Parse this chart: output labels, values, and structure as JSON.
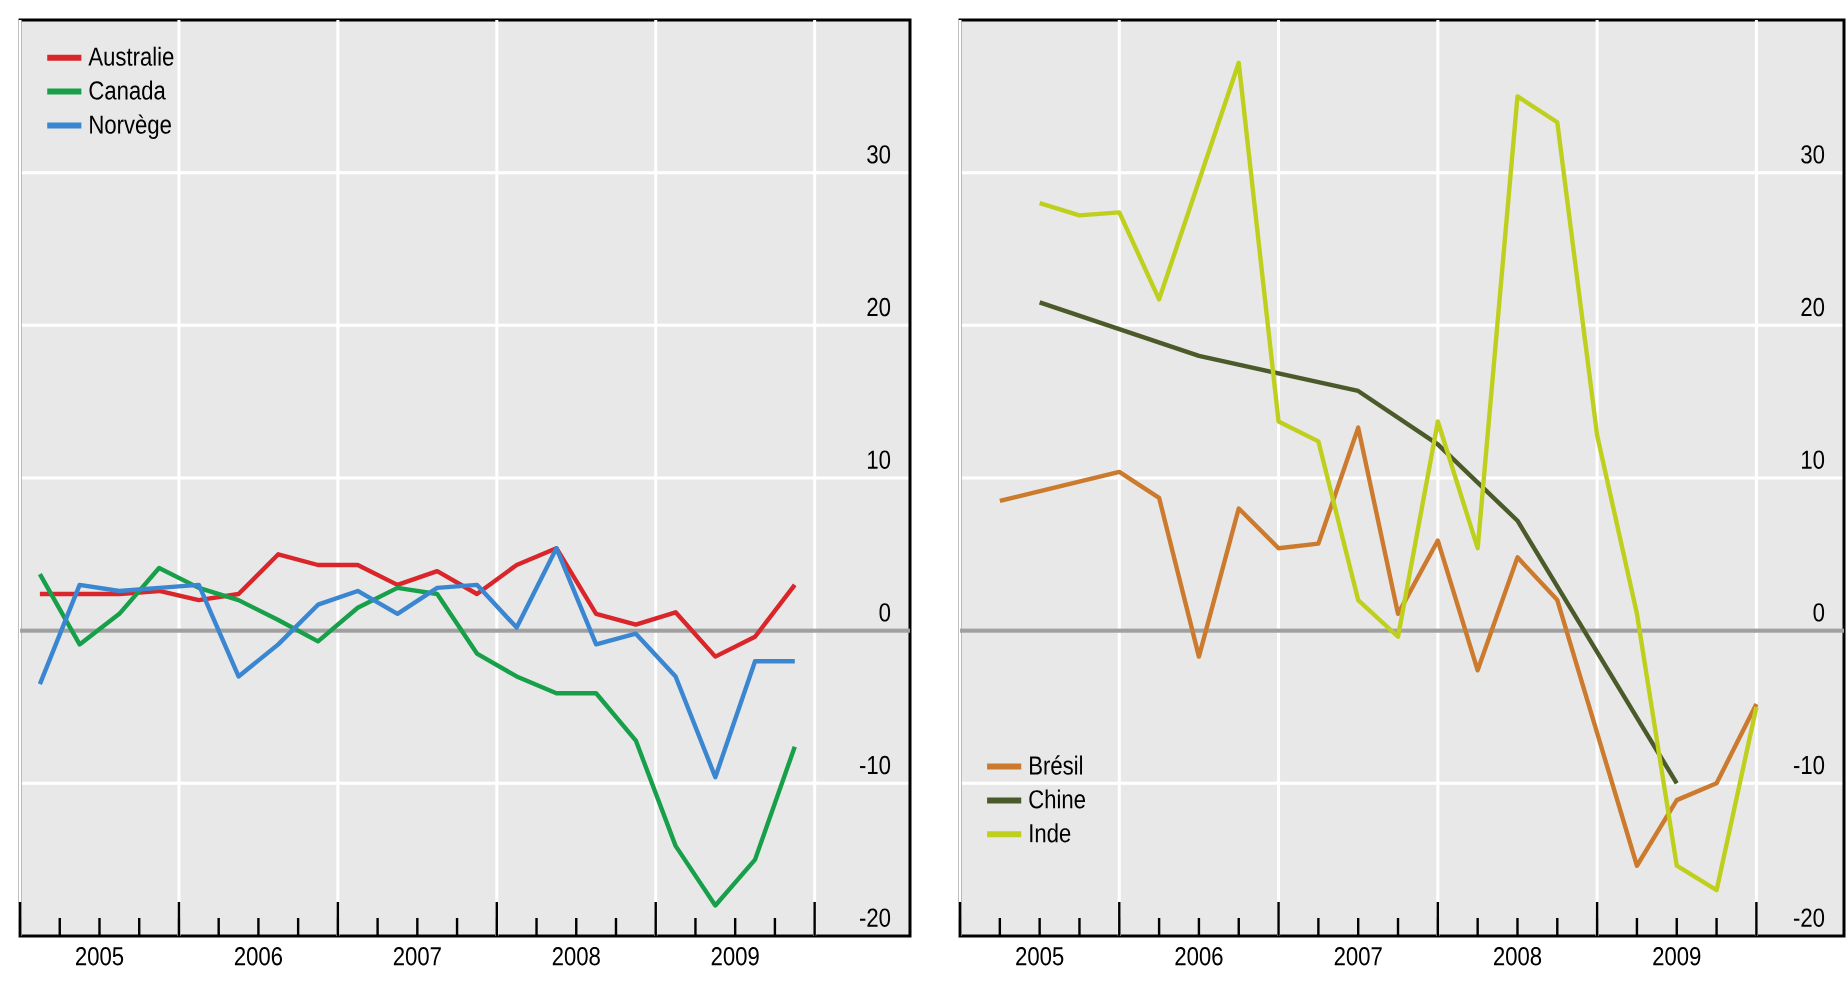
{
  "chart_data": [
    {
      "type": "line",
      "x": [
        2005.125,
        2005.375,
        2005.625,
        2005.875,
        2006.125,
        2006.375,
        2006.625,
        2006.875,
        2007.125,
        2007.375,
        2007.625,
        2007.875,
        2008.125,
        2008.375,
        2008.625,
        2008.875,
        2009.125,
        2009.375,
        2009.625,
        2009.875
      ],
      "series": [
        {
          "name": "Australie",
          "color": "#d9262b",
          "values": [
            2.4,
            2.4,
            2.4,
            2.6,
            2.0,
            2.4,
            5.0,
            4.3,
            4.3,
            3.0,
            3.9,
            2.4,
            4.3,
            5.4,
            1.1,
            0.4,
            1.2,
            -1.7,
            -0.4,
            3.0
          ]
        },
        {
          "name": "Canada",
          "color": "#17a049",
          "values": [
            3.7,
            -0.9,
            1.1,
            4.1,
            2.8,
            2.0,
            0.7,
            -0.7,
            1.5,
            2.8,
            2.4,
            -1.5,
            -3.0,
            -4.1,
            -4.1,
            -7.2,
            -14.1,
            -18.0,
            -15.0,
            -7.6
          ]
        },
        {
          "name": "Norvège",
          "color": "#3b86d1",
          "values": [
            -3.5,
            3.0,
            2.6,
            2.8,
            3.0,
            -3.0,
            -0.9,
            1.7,
            2.6,
            1.1,
            2.8,
            3.0,
            0.2,
            5.4,
            -0.9,
            -0.2,
            -3.0,
            -9.6,
            -2.0,
            -2.0
          ]
        }
      ],
      "xlim": [
        2005,
        2010.6
      ],
      "ylim": [
        -20,
        40
      ],
      "xticks": [
        {
          "value": 2005,
          "label": null
        },
        {
          "value": 2005.25,
          "label": null
        },
        {
          "value": 2005.5,
          "label": "2005"
        },
        {
          "value": 2005.75,
          "label": null
        },
        {
          "value": 2006,
          "label": null
        },
        {
          "value": 2006.25,
          "label": null
        },
        {
          "value": 2006.5,
          "label": "2006"
        },
        {
          "value": 2006.75,
          "label": null
        },
        {
          "value": 2007,
          "label": null
        },
        {
          "value": 2007.25,
          "label": null
        },
        {
          "value": 2007.5,
          "label": "2007"
        },
        {
          "value": 2007.75,
          "label": null
        },
        {
          "value": 2008,
          "label": null
        },
        {
          "value": 2008.25,
          "label": null
        },
        {
          "value": 2008.5,
          "label": "2008"
        },
        {
          "value": 2008.75,
          "label": null
        },
        {
          "value": 2009,
          "label": null
        },
        {
          "value": 2009.25,
          "label": null
        },
        {
          "value": 2009.5,
          "label": "2009"
        },
        {
          "value": 2009.75,
          "label": null
        },
        {
          "value": 2010,
          "label": null
        }
      ],
      "yticks": [
        -20,
        -10,
        0,
        10,
        20,
        30
      ],
      "ref_lines": [
        {
          "axis": "y",
          "value": 0,
          "color": "#a0a0a0"
        }
      ],
      "grid": true,
      "legend": "top left",
      "line_style": "solid",
      "marker": "none"
    },
    {
      "type": "line",
      "series": [
        {
          "name": "Brésil",
          "color": "#cc7a2e",
          "x": [
            2005.25,
            2006,
            2006.25,
            2006.5,
            2006.75,
            2007,
            2007.25,
            2007.5,
            2007.75,
            2008,
            2008.25,
            2008.5,
            2008.75,
            2009.25,
            2009.5,
            2009.75,
            2010
          ],
          "values": [
            8.5,
            10.4,
            8.7,
            -1.7,
            8.0,
            5.4,
            5.7,
            13.3,
            1.1,
            5.9,
            -2.6,
            4.8,
            2.0,
            -15.4,
            -11.1,
            -10.0,
            -4.8
          ]
        },
        {
          "name": "Chine",
          "color": "#4b5a2a",
          "x": [
            2005.5,
            2006.5,
            2007.5,
            2008,
            2008.5,
            2009.5
          ],
          "values": [
            21.5,
            18.0,
            15.7,
            12.2,
            7.2,
            -10.0
          ]
        },
        {
          "name": "Inde",
          "color": "#bfcf1e",
          "x": [
            2005.5,
            2005.75,
            2006,
            2006.25,
            2006.75,
            2007,
            2007.25,
            2007.5,
            2007.75,
            2008,
            2008.25,
            2008.5,
            2008.75,
            2009,
            2009.25,
            2009.5,
            2009.75,
            2010
          ],
          "values": [
            28.0,
            27.2,
            27.4,
            21.7,
            37.2,
            13.7,
            12.4,
            2.0,
            -0.4,
            13.7,
            5.4,
            35.0,
            33.3,
            12.8,
            1.1,
            -15.4,
            -17.0,
            -5.0
          ]
        }
      ],
      "xlim": [
        2005,
        2010.55
      ],
      "ylim": [
        -20,
        40
      ],
      "xticks": [
        {
          "value": 2005,
          "label": null
        },
        {
          "value": 2005.25,
          "label": null
        },
        {
          "value": 2005.5,
          "label": "2005"
        },
        {
          "value": 2005.75,
          "label": null
        },
        {
          "value": 2006,
          "label": null
        },
        {
          "value": 2006.25,
          "label": null
        },
        {
          "value": 2006.5,
          "label": "2006"
        },
        {
          "value": 2006.75,
          "label": null
        },
        {
          "value": 2007,
          "label": null
        },
        {
          "value": 2007.25,
          "label": null
        },
        {
          "value": 2007.5,
          "label": "2007"
        },
        {
          "value": 2007.75,
          "label": null
        },
        {
          "value": 2008,
          "label": null
        },
        {
          "value": 2008.25,
          "label": null
        },
        {
          "value": 2008.5,
          "label": "2008"
        },
        {
          "value": 2008.75,
          "label": null
        },
        {
          "value": 2009,
          "label": null
        },
        {
          "value": 2009.25,
          "label": null
        },
        {
          "value": 2009.5,
          "label": "2009"
        },
        {
          "value": 2009.75,
          "label": null
        },
        {
          "value": 2010,
          "label": null
        }
      ],
      "yticks": [
        -20,
        -10,
        0,
        10,
        20,
        30
      ],
      "ref_lines": [
        {
          "axis": "y",
          "value": 0,
          "color": "#a0a0a0"
        }
      ],
      "grid": true,
      "legend": "bottom left",
      "line_style": "solid",
      "marker": "none"
    }
  ]
}
